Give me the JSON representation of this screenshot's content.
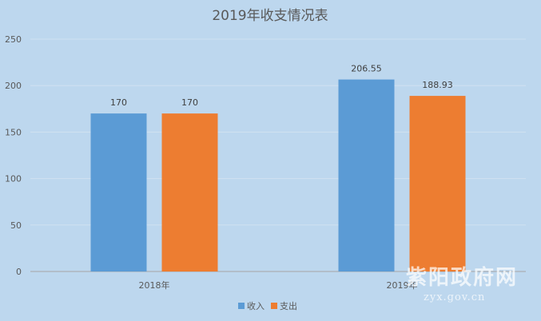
{
  "chart_data": {
    "type": "bar",
    "title": "2019年收支情况表",
    "categories": [
      "2018年",
      "2019年"
    ],
    "series": [
      {
        "name": "收入",
        "values": [
          170,
          206.55
        ],
        "color": "#5b9bd5"
      },
      {
        "name": "支出",
        "values": [
          170,
          188.93
        ],
        "color": "#ed7d31"
      }
    ],
    "ylim": [
      0,
      250
    ],
    "yticks": [
      0,
      50,
      100,
      150,
      200,
      250
    ],
    "xlabel": "",
    "ylabel": "",
    "grid": true,
    "legend": "bottom"
  },
  "watermark": {
    "text": "紫阳政府网",
    "url": "zyx.gov.cn"
  }
}
